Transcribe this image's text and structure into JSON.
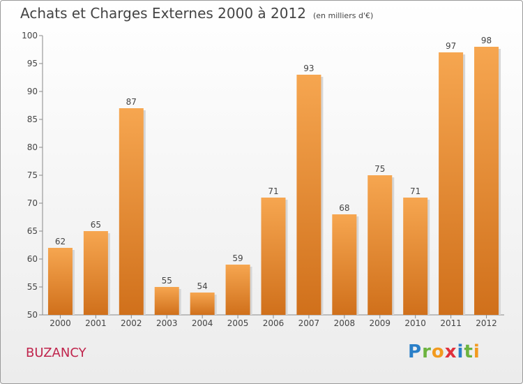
{
  "title": "Achats et Charges Externes 2000 à 2012",
  "subtitle": "(en milliers d'€)",
  "place": "BUZANCY",
  "logo": {
    "text": "Proxiti",
    "letters": [
      {
        "ch": "P",
        "color": "#2a7fc8"
      },
      {
        "ch": "r",
        "color": "#6cb33f"
      },
      {
        "ch": "o",
        "color": "#f29a1f"
      },
      {
        "ch": "x",
        "color": "#e0303c"
      },
      {
        "ch": "i",
        "color": "#2a7fc8"
      },
      {
        "ch": "t",
        "color": "#6cb33f"
      },
      {
        "ch": "i",
        "color": "#f29a1f"
      }
    ]
  },
  "colors": {
    "bar_top": "#f6a650",
    "bar_bottom": "#d0701b",
    "place": "#c0244c"
  },
  "chart_data": {
    "type": "bar",
    "title": "Achats et Charges Externes 2000 à 2012",
    "subtitle": "(en milliers d'€)",
    "categories": [
      "2000",
      "2001",
      "2002",
      "2003",
      "2004",
      "2005",
      "2006",
      "2007",
      "2008",
      "2009",
      "2010",
      "2011",
      "2012"
    ],
    "values": [
      62,
      65,
      87,
      55,
      54,
      59,
      71,
      93,
      68,
      75,
      71,
      97,
      98
    ],
    "ylim": [
      50,
      100
    ],
    "yticks": [
      50,
      55,
      60,
      65,
      70,
      75,
      80,
      85,
      90,
      95,
      100
    ],
    "grid": false,
    "legend": "none"
  }
}
